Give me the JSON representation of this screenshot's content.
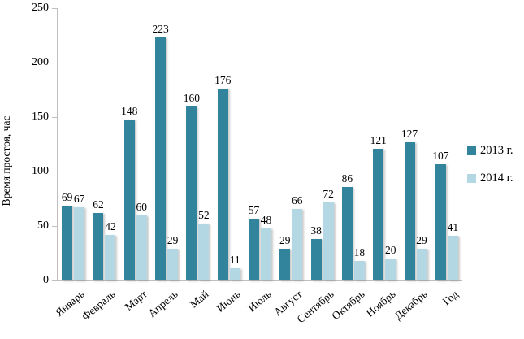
{
  "chart_data": {
    "type": "bar",
    "title": "",
    "xlabel": "",
    "ylabel": "Время простоя, час",
    "categories": [
      "Январь",
      "Февраль",
      "Март",
      "Апрель",
      "Май",
      "Июнь",
      "Июль",
      "Август",
      "Сентябрь",
      "Октябрь",
      "Ноябрь",
      "Декабрь",
      "Год"
    ],
    "series": [
      {
        "name": "2013 г.",
        "color": "#31849B",
        "values": [
          69,
          62,
          148,
          223,
          160,
          176,
          57,
          29,
          38,
          86,
          121,
          127,
          107
        ]
      },
      {
        "name": "2014 г.",
        "color": "#B3D7E3",
        "values": [
          67,
          42,
          60,
          29,
          52,
          11,
          48,
          66,
          72,
          18,
          20,
          29,
          41
        ]
      }
    ],
    "ylim": [
      0,
      250
    ],
    "yticks": [
      0,
      50,
      100,
      150,
      200,
      250
    ],
    "grid": false,
    "data_labels": true,
    "legend_position": "right",
    "axis_color": "#BFBFBF",
    "text_color": "#000000"
  }
}
